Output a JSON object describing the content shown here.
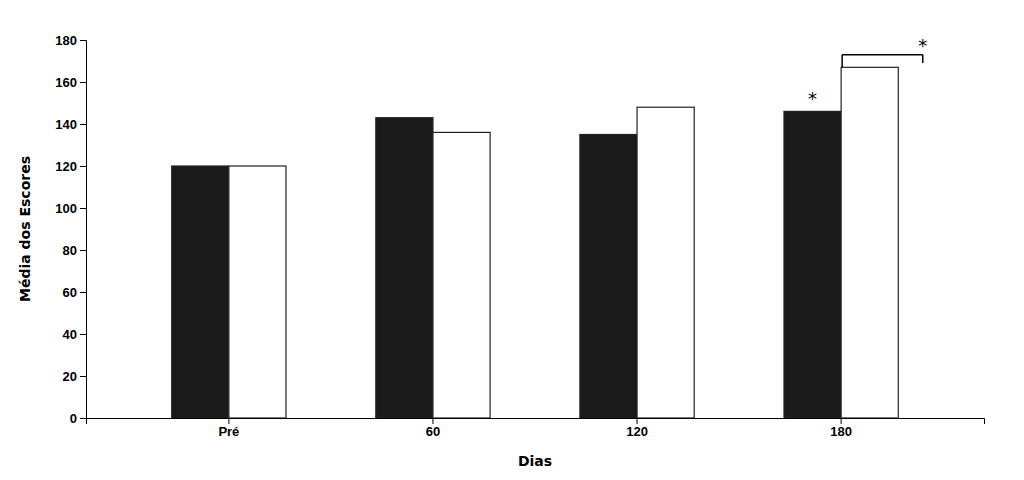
{
  "chart_data": {
    "type": "bar",
    "categories": [
      "Pré",
      "60",
      "120",
      "180"
    ],
    "series": [
      {
        "color": "#1a1a1a",
        "values": [
          120,
          143,
          135,
          146
        ]
      },
      {
        "color": "#ffffff",
        "values": [
          120,
          136,
          148,
          167
        ]
      }
    ],
    "xlabel": "Dias",
    "ylabel": "Média dos Escores",
    "ylim": [
      0,
      180
    ],
    "yticks": [
      0,
      20,
      40,
      60,
      80,
      100,
      120,
      140,
      160,
      180
    ],
    "grid": false,
    "annotations": [
      {
        "text": "*",
        "category": "180",
        "series": 0,
        "y": 150
      },
      {
        "text": "*",
        "category": "180",
        "series": 1,
        "y": 175
      }
    ],
    "bracket": {
      "category": "180",
      "y_values": [
        167,
        173,
        169
      ]
    }
  }
}
